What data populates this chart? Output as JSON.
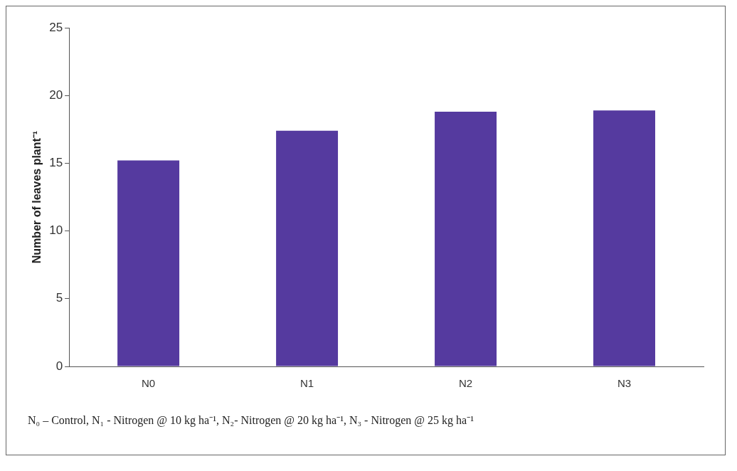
{
  "chart_data": {
    "type": "bar",
    "ylabel": "Number of leaves plant⁻¹",
    "categories": [
      "N0",
      "N1",
      "N2",
      "N3"
    ],
    "values": [
      15.2,
      17.4,
      18.8,
      18.9
    ],
    "color": "#553a9f",
    "ylim": [
      0,
      25
    ],
    "yticks": [
      0,
      5,
      10,
      15,
      20,
      25
    ],
    "grid": false,
    "legend": false,
    "annotations": [
      "N₀ – Control, N₁ - Nitrogen @ 10 kg ha⁻¹, N₂- Nitrogen @ 20 kg ha⁻¹, N₃ - Nitrogen @ 25 kg ha⁻¹"
    ]
  }
}
